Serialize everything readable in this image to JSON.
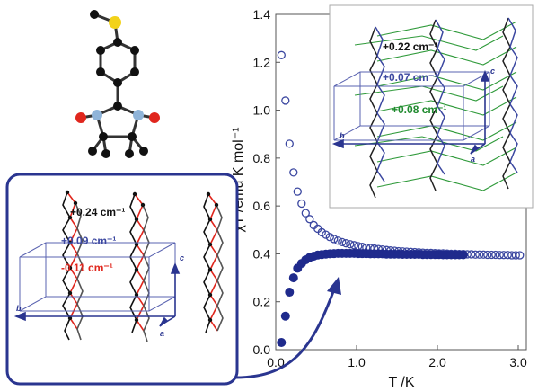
{
  "chart_data": {
    "type": "scatter",
    "title": "",
    "xlabel": "T   /K",
    "ylabel": "χT   /emu K mol⁻¹",
    "xlim": [
      0,
      3.1
    ],
    "ylim": [
      0,
      1.4
    ],
    "x_ticks": [
      "0.0",
      "1.0",
      "2.0",
      "3.0"
    ],
    "y_ticks": [
      "0.0",
      "0.2",
      "0.4",
      "0.6",
      "0.8",
      "1.0",
      "1.2",
      "1.4"
    ],
    "grid": false,
    "series": [
      {
        "marker": "open-circle",
        "color": "#3b47a0",
        "x": [
          0.07,
          0.12,
          0.17,
          0.22,
          0.27,
          0.32,
          0.37,
          0.42,
          0.47,
          0.52,
          0.57,
          0.62,
          0.67,
          0.72,
          0.77,
          0.82,
          0.87,
          0.92,
          0.97,
          1.02,
          1.07,
          1.12,
          1.17,
          1.22,
          1.27,
          1.32,
          1.37,
          1.42,
          1.47,
          1.52,
          1.57,
          1.62,
          1.67,
          1.72,
          1.77,
          1.82,
          1.87,
          1.92,
          1.97,
          2.02,
          2.07,
          2.12,
          2.17,
          2.22,
          2.27,
          2.32,
          2.37,
          2.42,
          2.47,
          2.52,
          2.57,
          2.62,
          2.67,
          2.72,
          2.77,
          2.82,
          2.87,
          2.92,
          2.97,
          3.02
        ],
        "y": [
          1.23,
          1.04,
          0.86,
          0.74,
          0.66,
          0.61,
          0.57,
          0.545,
          0.52,
          0.505,
          0.49,
          0.48,
          0.47,
          0.462,
          0.455,
          0.449,
          0.444,
          0.44,
          0.436,
          0.432,
          0.429,
          0.426,
          0.424,
          0.422,
          0.42,
          0.418,
          0.416,
          0.414,
          0.413,
          0.411,
          0.41,
          0.409,
          0.408,
          0.407,
          0.406,
          0.405,
          0.404,
          0.404,
          0.403,
          0.402,
          0.402,
          0.401,
          0.4,
          0.4,
          0.399,
          0.399,
          0.398,
          0.398,
          0.397,
          0.397,
          0.397,
          0.396,
          0.396,
          0.396,
          0.395,
          0.395,
          0.395,
          0.394,
          0.394,
          0.394
        ]
      },
      {
        "marker": "filled-circle",
        "color": "#1f2a8c",
        "x": [
          0.07,
          0.12,
          0.17,
          0.22,
          0.27,
          0.32,
          0.37,
          0.42,
          0.47,
          0.52,
          0.57,
          0.62,
          0.67,
          0.72,
          0.77,
          0.82,
          0.87,
          0.92,
          0.97,
          1.02,
          1.07,
          1.12,
          1.17,
          1.22,
          1.27,
          1.32,
          1.37,
          1.42,
          1.47,
          1.52,
          1.57,
          1.62,
          1.67,
          1.72,
          1.77,
          1.82,
          1.87,
          1.92,
          1.97,
          2.02,
          2.07,
          2.12,
          2.17,
          2.22,
          2.27,
          2.32
        ],
        "y": [
          0.03,
          0.14,
          0.24,
          0.3,
          0.34,
          0.36,
          0.375,
          0.385,
          0.39,
          0.395,
          0.397,
          0.399,
          0.4,
          0.401,
          0.402,
          0.402,
          0.402,
          0.402,
          0.402,
          0.401,
          0.401,
          0.401,
          0.4,
          0.4,
          0.4,
          0.4,
          0.399,
          0.399,
          0.399,
          0.399,
          0.398,
          0.398,
          0.398,
          0.398,
          0.398,
          0.397,
          0.397,
          0.397,
          0.397,
          0.397,
          0.396,
          0.396,
          0.396,
          0.396,
          0.396,
          0.396
        ]
      }
    ],
    "annotations": [
      {
        "panel": "lower-left-structure",
        "text": "+0.24 cm⁻¹",
        "color": "#111111"
      },
      {
        "panel": "lower-left-structure",
        "text": "+0.09 cm⁻¹",
        "color": "#3b47a0"
      },
      {
        "panel": "lower-left-structure",
        "text": "-0.11 cm⁻¹",
        "color": "#e0261d"
      },
      {
        "panel": "upper-right-structure",
        "text": "+0.22 cm⁻¹",
        "color": "#111111"
      },
      {
        "panel": "upper-right-structure",
        "text": "+0.07 cm⁻¹",
        "color": "#3b47a0"
      },
      {
        "panel": "upper-right-structure",
        "text": "+0.08 cm⁻¹",
        "color": "#1f8a2e"
      }
    ],
    "crystal_axes": [
      "a",
      "b",
      "c"
    ]
  },
  "colors": {
    "open_series": "#3b47a0",
    "filled_series": "#1f2a8c",
    "frame_blue": "#2a3590",
    "red_bond": "#e0261d",
    "green_bond": "#2f9a3a",
    "sulfur": "#f2d21b",
    "oxygen": "#e0261d",
    "nitrogen": "#8fb4d9"
  }
}
